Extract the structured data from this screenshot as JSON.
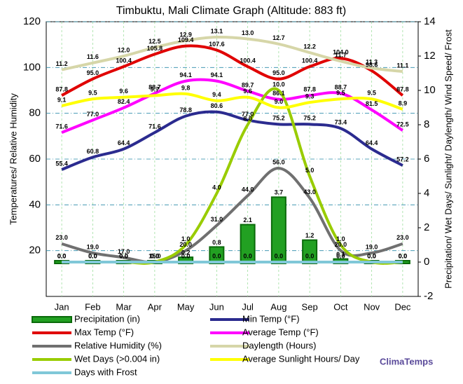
{
  "chart_data": {
    "type": "line",
    "title": "Timbuktu, Mali Climate Graph (Altitude: 883 ft)",
    "y_label": "Temperatures/ Relative Humidity",
    "y2_label": "Precipitation/ Wet Days/ Sunlight/ Daylength/ Wind Speed/ Frost",
    "watermark": "ClimaTemps",
    "categories": [
      "Jan",
      "Feb",
      "Mar",
      "Apr",
      "May",
      "Jun",
      "Jul",
      "Aug",
      "Sep",
      "Oct",
      "Nov",
      "Dec"
    ],
    "ylim": [
      0,
      120
    ],
    "yticks": [
      20,
      40,
      60,
      80,
      100,
      120
    ],
    "y2lim": [
      -2,
      14
    ],
    "y2ticks": [
      -2,
      0,
      2,
      4,
      6,
      8,
      10,
      12,
      14
    ],
    "grid": true,
    "series": [
      {
        "name": "Precipitation (in)",
        "type": "bar",
        "axis": "y2",
        "color": "#22a022",
        "values": [
          0,
          0,
          0,
          0,
          0.2,
          0.8,
          2.1,
          3.7,
          1.2,
          0.1,
          0,
          0
        ],
        "value_labels": [
          "0.0",
          "0.0",
          "0.0",
          "0.0",
          "0.2",
          "0.8",
          "2.1",
          "3.7",
          "1.2",
          "0.1",
          "0.0",
          "0.0"
        ]
      },
      {
        "name": "Min Temp (°F)",
        "color": "#2b2b8f",
        "values": [
          55.4,
          60.8,
          64.4,
          71.6,
          78.8,
          80.6,
          77,
          75.2,
          75.2,
          73.4,
          64.4,
          57.2
        ],
        "value_labels": [
          "55.4",
          "60.8",
          "64.4",
          "71.6",
          "78.8",
          "80.6",
          "77.0",
          "75.2",
          "75.2",
          "73.4",
          "64.4",
          "57.2"
        ]
      },
      {
        "name": "Max Temp (°F)",
        "color": "#e00000",
        "values": [
          87.8,
          95,
          100.4,
          105.8,
          109.4,
          107.6,
          100.4,
          95,
          100.4,
          104,
          98.6,
          87.8
        ],
        "value_labels": [
          "87.8",
          "95.0",
          "100.4",
          "105.8",
          "109.4",
          "107.6",
          "100.4",
          "95.0",
          "100.4",
          "104.0",
          "98.6",
          "87.8"
        ]
      },
      {
        "name": "Average Temp (°F)",
        "color": "#ff00ff",
        "values": [
          71.6,
          77,
          82.4,
          88.7,
          94.1,
          94.1,
          89.7,
          86.1,
          87.8,
          88.7,
          81.5,
          72.5
        ],
        "value_labels": [
          "71.6",
          "77.0",
          "82.4",
          "88.7",
          "94.1",
          "94.1",
          "89.7",
          "86.1",
          "87.8",
          "88.7",
          "81.5",
          "72.5"
        ]
      },
      {
        "name": "Relative Humidity (%)",
        "color": "#707070",
        "values": [
          23,
          19,
          17,
          15,
          20,
          31,
          44,
          56,
          43,
          20,
          19,
          23
        ],
        "value_labels": [
          "23.0",
          "19.0",
          "17.0",
          "15.0",
          "20.0",
          "31.0",
          "44.0",
          "56.0",
          "43.0",
          "20.0",
          "19.0",
          "23.0"
        ]
      },
      {
        "name": "Daylength (Hours)",
        "axis": "y2",
        "color": "#d6d6a8",
        "values": [
          11.2,
          11.6,
          12,
          12.5,
          12.9,
          13.1,
          13,
          12.7,
          12.2,
          11.7,
          11.3,
          11.1
        ],
        "value_labels": [
          "11.2",
          "11.6",
          "12.0",
          "12.5",
          "12.9",
          "13.1",
          "13.0",
          "12.7",
          "12.2",
          "11.7",
          "11.3",
          "11.1"
        ]
      },
      {
        "name": "Wet Days (>0.004 in)",
        "axis": "y2",
        "color": "#99cc00",
        "values": [
          0,
          0,
          0,
          0,
          1,
          4,
          8,
          10,
          5,
          1,
          0,
          0
        ],
        "value_labels": [
          "0.0",
          "0.0",
          "0.0",
          "0.0",
          "1.0",
          "4.0",
          "8.0",
          "10.0",
          "5.0",
          "1.0",
          "0.0",
          "0.0"
        ]
      },
      {
        "name": "Average Sunlight Hours/ Day",
        "axis": "y2",
        "color": "#ffff00",
        "values": [
          9.1,
          9.5,
          9.6,
          9.7,
          9.8,
          9.4,
          9.6,
          9,
          9.3,
          9.5,
          9.5,
          8.9
        ],
        "value_labels": [
          "9.1",
          "9.5",
          "9.6",
          "9.7",
          "9.8",
          "9.4",
          "9.6",
          "9.0",
          "9.3",
          "9.5",
          "9.5",
          "8.9"
        ]
      },
      {
        "name": "Days with Frost",
        "axis": "y2",
        "color": "#80c8d8",
        "values": [
          0,
          0,
          0,
          0,
          0,
          0,
          0,
          0,
          0,
          0,
          0,
          0
        ],
        "value_labels": [
          "0.0",
          "0.0",
          "0.0",
          "0.0",
          "0.0",
          "0.0",
          "0.0",
          "0.0",
          "0.0",
          "0.0",
          "0.0",
          "0.0"
        ]
      }
    ]
  }
}
